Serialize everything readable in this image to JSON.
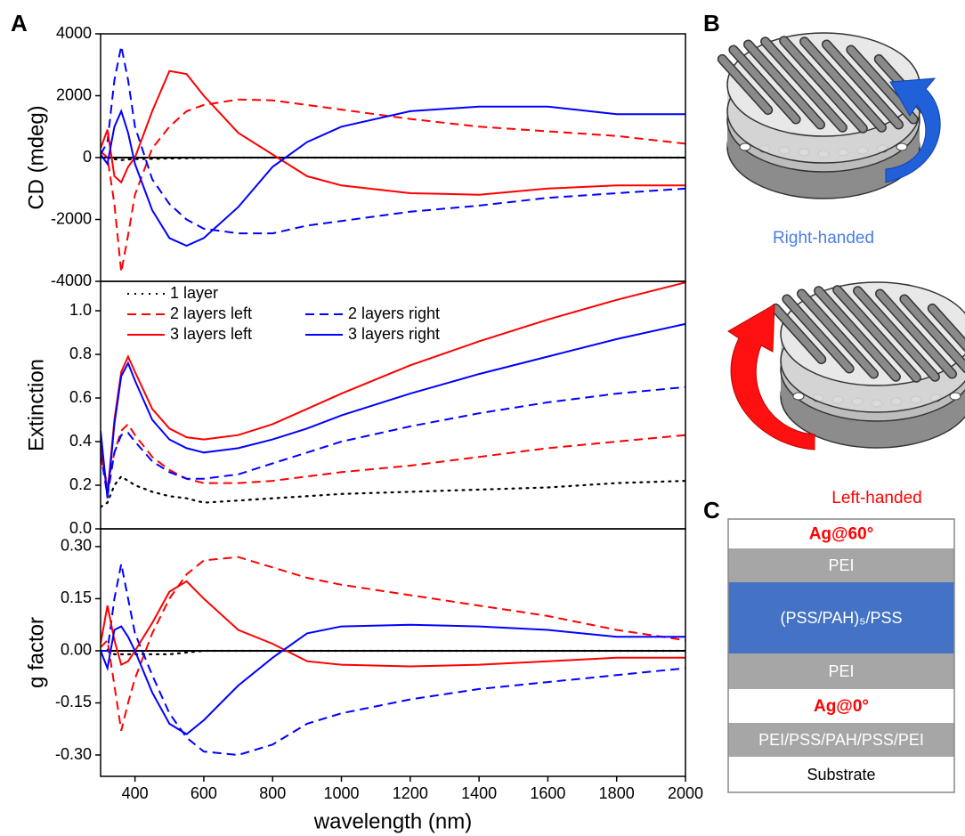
{
  "panel_labels": [
    "A",
    "B",
    "C"
  ],
  "chart_data": [
    {
      "type": "line",
      "ylabel": "CD (mdeg)",
      "xlim": [
        300,
        2000
      ],
      "ylim": [
        -4000,
        4000
      ],
      "yticks": [
        -4000,
        -2000,
        0,
        2000,
        4000
      ],
      "zero_line": true,
      "x": [
        300,
        320,
        340,
        360,
        380,
        400,
        450,
        500,
        550,
        600,
        700,
        800,
        900,
        1000,
        1200,
        1400,
        1600,
        1800,
        2000
      ],
      "series": [
        {
          "color": "#000000",
          "style": "dotted",
          "values": [
            0,
            0,
            -50,
            -80,
            -60,
            -50,
            -40,
            -30,
            -20,
            -10,
            0,
            0,
            0,
            0,
            0,
            0,
            0,
            0,
            0
          ]
        },
        {
          "color": "#ff0000",
          "style": "dashed",
          "values": [
            200,
            0,
            -1500,
            -3700,
            -2500,
            -1200,
            300,
            1000,
            1500,
            1700,
            1880,
            1850,
            1700,
            1550,
            1250,
            1000,
            850,
            700,
            450
          ]
        },
        {
          "color": "#0000ff",
          "style": "dashed",
          "values": [
            100,
            500,
            2500,
            3600,
            2500,
            1000,
            -700,
            -1500,
            -2000,
            -2300,
            -2450,
            -2450,
            -2200,
            -2050,
            -1750,
            -1550,
            -1300,
            -1150,
            -1000
          ]
        },
        {
          "color": "#ff0000",
          "style": "solid",
          "values": [
            300,
            900,
            -600,
            -800,
            -300,
            0,
            1500,
            2800,
            2700,
            2000,
            800,
            100,
            -600,
            -900,
            -1150,
            -1200,
            -1000,
            -900,
            -900
          ]
        },
        {
          "color": "#0000ff",
          "style": "solid",
          "values": [
            100,
            -200,
            1000,
            1500,
            800,
            -200,
            -1700,
            -2600,
            -2850,
            -2600,
            -1600,
            -300,
            500,
            1000,
            1500,
            1650,
            1650,
            1400,
            1400
          ]
        }
      ]
    },
    {
      "type": "line",
      "ylabel": "Extinction",
      "xlim": [
        300,
        2000
      ],
      "ylim": [
        0,
        1.135
      ],
      "yticks": [
        {
          "value": 0,
          "label": "0.0"
        },
        0.2,
        0.4,
        0.6,
        0.8,
        {
          "value": 1,
          "label": "1.0"
        }
      ],
      "legend": "upper left",
      "x": [
        300,
        320,
        340,
        360,
        380,
        400,
        450,
        500,
        550,
        600,
        700,
        800,
        900,
        1000,
        1200,
        1400,
        1600,
        1800,
        2000
      ],
      "series": [
        {
          "name": "1 layer",
          "color": "#000000",
          "style": "dotted",
          "values": [
            0.1,
            0.12,
            0.2,
            0.24,
            0.22,
            0.2,
            0.17,
            0.15,
            0.14,
            0.12,
            0.13,
            0.14,
            0.15,
            0.16,
            0.17,
            0.18,
            0.19,
            0.21,
            0.22
          ]
        },
        {
          "name": "2 layers left",
          "color": "#ff0000",
          "style": "dashed",
          "values": [
            0.33,
            0.2,
            0.35,
            0.45,
            0.48,
            0.43,
            0.33,
            0.27,
            0.23,
            0.21,
            0.21,
            0.22,
            0.24,
            0.26,
            0.29,
            0.33,
            0.37,
            0.4,
            0.43
          ]
        },
        {
          "name": "2 layers right",
          "color": "#0000ff",
          "style": "dashed",
          "values": [
            0.35,
            0.15,
            0.35,
            0.43,
            0.44,
            0.4,
            0.31,
            0.26,
            0.23,
            0.23,
            0.25,
            0.3,
            0.35,
            0.4,
            0.47,
            0.53,
            0.58,
            0.62,
            0.65
          ]
        },
        {
          "name": "3 layers left",
          "color": "#ff0000",
          "style": "solid",
          "values": [
            0.4,
            0.16,
            0.5,
            0.72,
            0.79,
            0.72,
            0.55,
            0.46,
            0.42,
            0.41,
            0.43,
            0.48,
            0.55,
            0.62,
            0.75,
            0.86,
            0.96,
            1.05,
            1.13
          ]
        },
        {
          "name": "3 layers right",
          "color": "#0000ff",
          "style": "solid",
          "values": [
            0.45,
            0.14,
            0.48,
            0.7,
            0.76,
            0.68,
            0.5,
            0.41,
            0.37,
            0.35,
            0.37,
            0.41,
            0.46,
            0.52,
            0.62,
            0.71,
            0.79,
            0.87,
            0.94
          ]
        }
      ]
    },
    {
      "type": "line",
      "ylabel": "g factor",
      "xlabel": "wavelength (nm)",
      "xlim": [
        300,
        2000
      ],
      "ylim": [
        -0.3615,
        0.351
      ],
      "xticks": [
        400,
        600,
        800,
        1000,
        1200,
        1400,
        1600,
        1800,
        2000
      ],
      "yticks": [
        {
          "value": -0.3,
          "label": "-0.30"
        },
        -0.15,
        {
          "value": 0,
          "label": "0.00"
        },
        0.15,
        {
          "value": 0.3,
          "label": "0.30"
        }
      ],
      "zero_line": true,
      "x": [
        300,
        320,
        340,
        360,
        380,
        400,
        450,
        500,
        550,
        600,
        700,
        800,
        900,
        1000,
        1200,
        1400,
        1600,
        1800,
        2000
      ],
      "series": [
        {
          "color": "#000000",
          "style": "dotted",
          "values": [
            0,
            0,
            -0.01,
            -0.01,
            -0.01,
            -0.01,
            -0.01,
            -0.01,
            -0.005,
            0,
            0,
            0,
            0,
            0,
            0,
            0,
            0,
            0,
            0
          ]
        },
        {
          "color": "#ff0000",
          "style": "dashed",
          "values": [
            0.01,
            0.03,
            -0.1,
            -0.23,
            -0.15,
            -0.08,
            0.05,
            0.15,
            0.22,
            0.26,
            0.27,
            0.24,
            0.21,
            0.19,
            0.16,
            0.13,
            0.1,
            0.06,
            0.03
          ]
        },
        {
          "color": "#0000ff",
          "style": "dashed",
          "values": [
            0,
            0,
            0.15,
            0.25,
            0.15,
            0.05,
            -0.07,
            -0.18,
            -0.25,
            -0.29,
            -0.3,
            -0.27,
            -0.21,
            -0.18,
            -0.14,
            -0.11,
            -0.09,
            -0.07,
            -0.05
          ]
        },
        {
          "color": "#ff0000",
          "style": "solid",
          "values": [
            0.02,
            0.13,
            0.03,
            -0.04,
            -0.03,
            0,
            0.08,
            0.17,
            0.2,
            0.15,
            0.06,
            0.02,
            -0.03,
            -0.04,
            -0.045,
            -0.04,
            -0.03,
            -0.02,
            -0.02
          ]
        },
        {
          "color": "#0000ff",
          "style": "solid",
          "values": [
            0,
            -0.05,
            0.06,
            0.07,
            0.04,
            0,
            -0.12,
            -0.21,
            -0.24,
            -0.2,
            -0.1,
            -0.02,
            0.05,
            0.07,
            0.075,
            0.07,
            0.06,
            0.04,
            0.04
          ]
        }
      ]
    }
  ],
  "diagram": {
    "labels": [
      "Right-handed",
      "Left-handed"
    ]
  },
  "layers": [
    {
      "label": "Ag@60°",
      "fill": "#ffffff"
    },
    {
      "label": "PEI",
      "fill": "#a6a6a6"
    },
    {
      "label": "(PSS/PAH)₅/PSS",
      "fill": "#4472c4"
    },
    {
      "label": "PEI",
      "fill": "#a6a6a6"
    },
    {
      "label": "Ag@0°",
      "fill": "#ffffff"
    },
    {
      "label": "PEI/PSS/PAH/PSS/PEI",
      "fill": "#a6a6a6"
    },
    {
      "label": "Substrate",
      "fill": "#ffffff"
    }
  ]
}
